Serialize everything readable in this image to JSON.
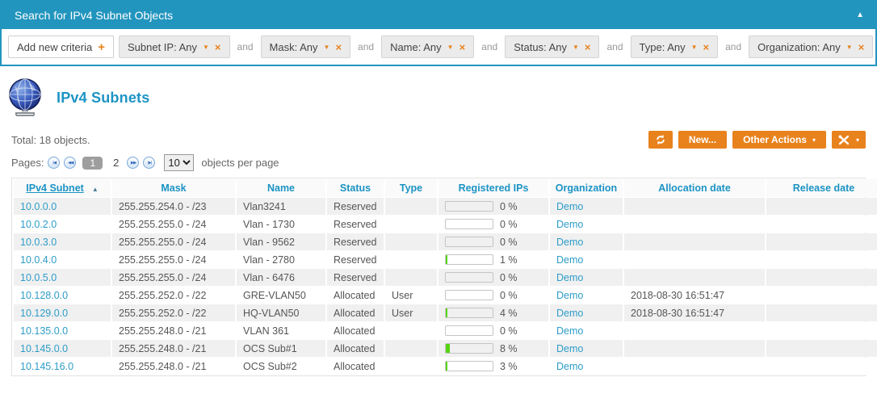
{
  "colors": {
    "accent_blue": "#2295BE",
    "accent_orange": "#E8821D",
    "link_blue": "#2D9DC8",
    "header_text_blue": "#1B93C4",
    "progress_green": "#55D411",
    "row_stripe": "#F0F0F0"
  },
  "icons": {
    "collapse": "▲",
    "caret_down": "▼",
    "close": "×",
    "plus": "+",
    "sort_asc": "▲",
    "pager_first": "|◀",
    "pager_prev": "◀◀",
    "pager_next": "▶▶",
    "pager_last": "▶|",
    "button_caret": "▾"
  },
  "panel": {
    "title": "Search for IPv4 Subnet Objects",
    "add_criteria_label": "Add new criteria",
    "connector": "and",
    "criteria": [
      {
        "label": "Subnet IP: Any"
      },
      {
        "label": "Mask: Any"
      },
      {
        "label": "Name: Any"
      },
      {
        "label": "Status: Any"
      },
      {
        "label": "Type: Any"
      },
      {
        "label": "Organization: Any"
      }
    ]
  },
  "page": {
    "heading": "IPv4 Subnets",
    "total_text": "Total: 18 objects.",
    "pages_label": "Pages:",
    "current_page": "1",
    "other_page": "2",
    "per_page_value": "10",
    "per_page_label": "objects per page",
    "new_button": "New...",
    "other_actions_button": "Other Actions"
  },
  "table": {
    "headers": [
      "IPv4 Subnet",
      "Mask",
      "Name",
      "Status",
      "Type",
      "Registered IPs",
      "Organization",
      "Allocation date",
      "Release date"
    ],
    "sorted_column": 0,
    "rows": [
      {
        "subnet": "10.0.0.0",
        "mask": "255.255.254.0 - /23",
        "name": "Vlan3241",
        "status": "Reserved",
        "type": "",
        "pct": 0,
        "pct_label": "0 %",
        "org": "Demo",
        "alloc": "",
        "release": ""
      },
      {
        "subnet": "10.0.2.0",
        "mask": "255.255.255.0 - /24",
        "name": "Vlan - 1730",
        "status": "Reserved",
        "type": "",
        "pct": 0,
        "pct_label": "0 %",
        "org": "Demo",
        "alloc": "",
        "release": ""
      },
      {
        "subnet": "10.0.3.0",
        "mask": "255.255.255.0 - /24",
        "name": "Vlan - 9562",
        "status": "Reserved",
        "type": "",
        "pct": 0,
        "pct_label": "0 %",
        "org": "Demo",
        "alloc": "",
        "release": ""
      },
      {
        "subnet": "10.0.4.0",
        "mask": "255.255.255.0 - /24",
        "name": "Vlan - 2780",
        "status": "Reserved",
        "type": "",
        "pct": 1,
        "pct_label": "1 %",
        "org": "Demo",
        "alloc": "",
        "release": ""
      },
      {
        "subnet": "10.0.5.0",
        "mask": "255.255.255.0 - /24",
        "name": "Vlan - 6476",
        "status": "Reserved",
        "type": "",
        "pct": 0,
        "pct_label": "0 %",
        "org": "Demo",
        "alloc": "",
        "release": ""
      },
      {
        "subnet": "10.128.0.0",
        "mask": "255.255.252.0 - /22",
        "name": "GRE-VLAN50",
        "status": "Allocated",
        "type": "User",
        "pct": 0,
        "pct_label": "0 %",
        "org": "Demo",
        "alloc": "2018-08-30 16:51:47",
        "release": ""
      },
      {
        "subnet": "10.129.0.0",
        "mask": "255.255.252.0 - /22",
        "name": "HQ-VLAN50",
        "status": "Allocated",
        "type": "User",
        "pct": 4,
        "pct_label": "4 %",
        "org": "Demo",
        "alloc": "2018-08-30 16:51:47",
        "release": ""
      },
      {
        "subnet": "10.135.0.0",
        "mask": "255.255.248.0 - /21",
        "name": "VLAN 361",
        "status": "Allocated",
        "type": "",
        "pct": 0,
        "pct_label": "0 %",
        "org": "Demo",
        "alloc": "",
        "release": ""
      },
      {
        "subnet": "10.145.0.0",
        "mask": "255.255.248.0 - /21",
        "name": "OCS Sub#1",
        "status": "Allocated",
        "type": "",
        "pct": 8,
        "pct_label": "8 %",
        "org": "Demo",
        "alloc": "",
        "release": ""
      },
      {
        "subnet": "10.145.16.0",
        "mask": "255.255.248.0 - /21",
        "name": "OCS Sub#2",
        "status": "Allocated",
        "type": "",
        "pct": 3,
        "pct_label": "3 %",
        "org": "Demo",
        "alloc": "",
        "release": ""
      }
    ]
  }
}
